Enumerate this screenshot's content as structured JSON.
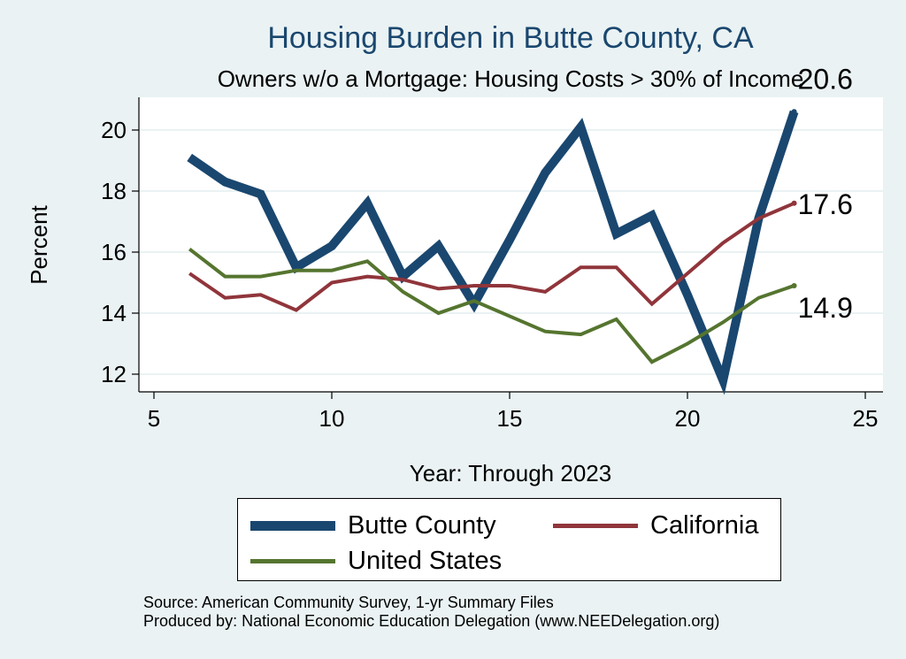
{
  "chart_data": {
    "type": "line",
    "title": "Housing Burden in Butte County, CA",
    "subtitle": "Owners w/o a Mortgage: Housing Costs > 30% of Income",
    "xlabel": "Year: Through 2023",
    "ylabel": "Percent",
    "xlim": [
      5,
      25
    ],
    "ylim": [
      11.3,
      21
    ],
    "xticks": [
      5,
      10,
      15,
      20,
      25
    ],
    "yticks": [
      12,
      14,
      16,
      18,
      20
    ],
    "grid": "horizontal",
    "legend_position": "bottom",
    "x": [
      6,
      7,
      8,
      9,
      10,
      11,
      12,
      13,
      14,
      15,
      16,
      17,
      18,
      19,
      20,
      21,
      22,
      23
    ],
    "series": [
      {
        "name": "Butte County",
        "color": "#1a476f",
        "values": [
          19.1,
          18.3,
          17.9,
          15.5,
          16.2,
          17.6,
          15.2,
          16.2,
          14.3,
          16.4,
          18.6,
          20.1,
          16.6,
          17.2,
          14.6,
          11.8,
          17.1,
          20.6
        ],
        "end_label": "20.6"
      },
      {
        "name": "California",
        "color": "#90353b",
        "values": [
          15.3,
          14.5,
          14.6,
          14.1,
          15.0,
          15.2,
          15.1,
          14.8,
          14.9,
          14.9,
          14.7,
          15.5,
          15.5,
          14.3,
          15.3,
          16.3,
          17.1,
          17.6
        ],
        "end_label": "17.6"
      },
      {
        "name": "United States",
        "color": "#55752f",
        "values": [
          16.1,
          15.2,
          15.2,
          15.4,
          15.4,
          15.7,
          14.7,
          14.0,
          14.4,
          13.9,
          13.4,
          13.3,
          13.8,
          12.4,
          13.0,
          13.7,
          14.5,
          14.9
        ],
        "end_label": "14.9"
      }
    ],
    "source_lines": [
      "Source: American Community Survey, 1-yr Summary Files",
      "Produced by: National Economic Education Delegation (www.NEEDelegation.org)"
    ]
  }
}
